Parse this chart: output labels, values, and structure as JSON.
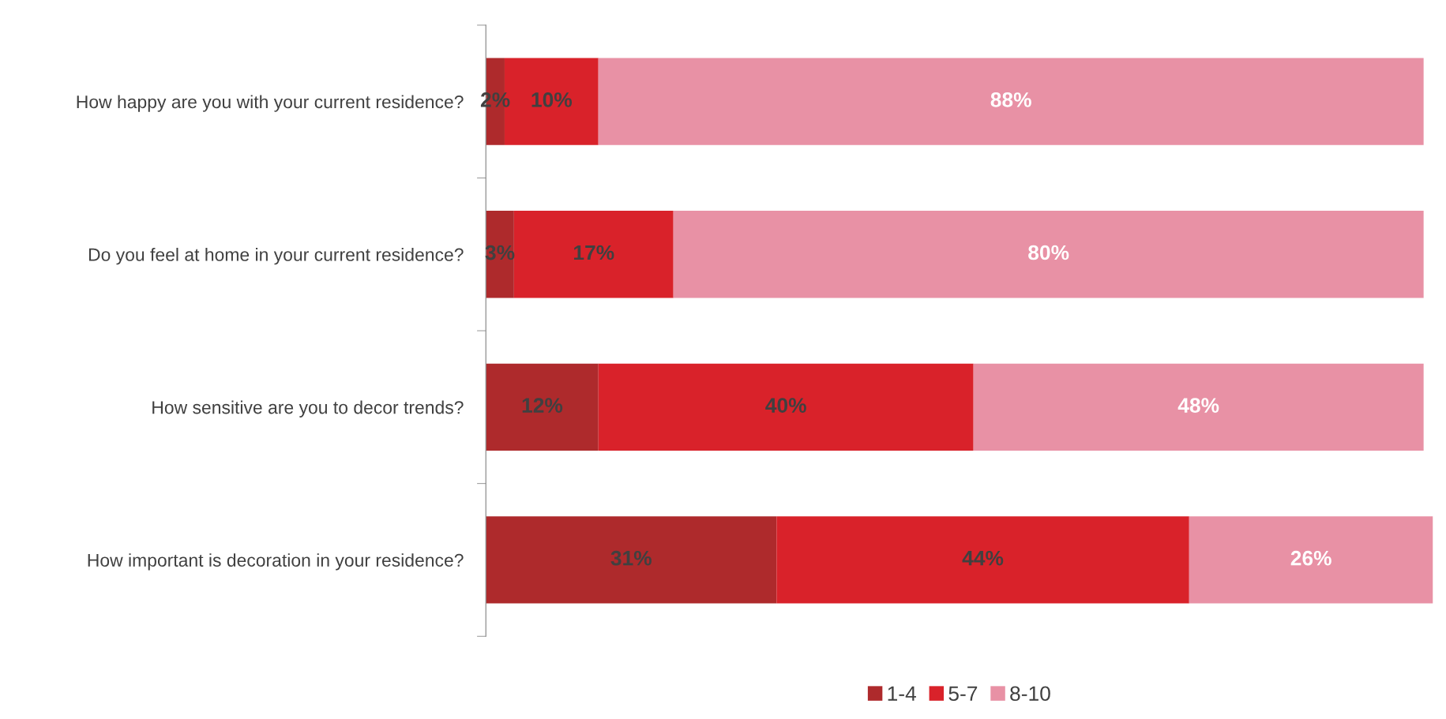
{
  "chart_data": {
    "type": "bar",
    "orientation": "horizontal",
    "stacked": true,
    "legend": "bottom",
    "grid": false,
    "categories": [
      "How happy are you with your current residence?",
      "Do you feel at home in your current residence?",
      "How sensitive are you to decor trends?",
      "How important is decoration in your residence?"
    ],
    "series": [
      {
        "name": "1-4",
        "color": "#ae2a2c",
        "values": [
          2,
          3,
          12,
          31
        ],
        "value_labels": [
          "2%",
          "3%",
          "12%",
          "31%"
        ]
      },
      {
        "name": "5-7",
        "color": "#d9222a",
        "values": [
          10,
          17,
          40,
          44
        ],
        "value_labels": [
          "10%",
          "17%",
          "40%",
          "44%"
        ]
      },
      {
        "name": "8-10",
        "color": "#e891a5",
        "values": [
          88,
          80,
          48,
          26
        ],
        "value_labels": [
          "88%",
          "80%",
          "48%",
          "26%"
        ]
      }
    ]
  }
}
